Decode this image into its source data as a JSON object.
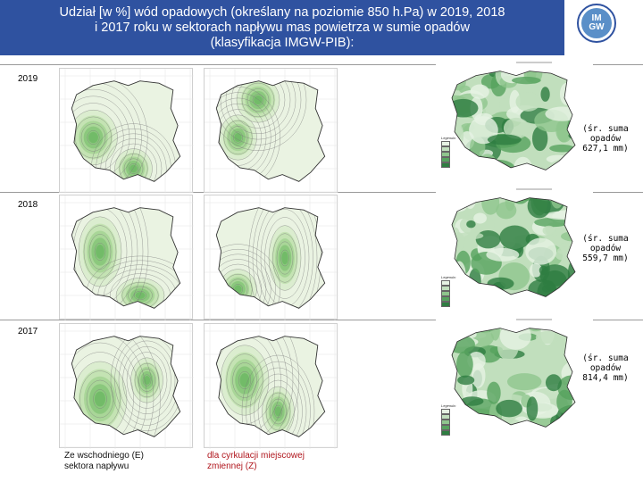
{
  "title": {
    "line1": "Udział [w %] wód opadowych (określany na poziomie 850 h.Pa) w 2019, 2018",
    "line2": "i 2017 roku w sektorach napływu mas powietrza w sumie opadów",
    "line3": "(klasyfikacja IMGW-PIB):"
  },
  "logo": {
    "line1": "IM",
    "line2": "GW"
  },
  "years": [
    {
      "label": "2019",
      "sum_line1": "(śr. suma",
      "sum_line2": "opadów",
      "sum_line3": "627,1 mm)"
    },
    {
      "label": "2018",
      "sum_line1": "(śr. suma",
      "sum_line2": "opadów",
      "sum_line3": "559,7 mm)"
    },
    {
      "label": "2017",
      "sum_line1": "(śr. suma",
      "sum_line2": "opadów",
      "sum_line3": "814,4 mm)"
    }
  ],
  "legend": {
    "title": "Legenda:",
    "rows": [
      {
        "color": "#e6f2e3"
      },
      {
        "color": "#c1dfbd"
      },
      {
        "color": "#8fc58d"
      },
      {
        "color": "#56a35e"
      },
      {
        "color": "#2e7d41"
      }
    ]
  },
  "map_icons": [
    "contour-map-icon",
    "choropleth-map-icon"
  ],
  "bottom": {
    "east_line1": "Ze wschodniego (E)",
    "east_line2": "sektora napływu",
    "zcirc_line1": "dla cyrkulacji miejscowej",
    "zcirc_line2": "zmiennej (Z)"
  }
}
